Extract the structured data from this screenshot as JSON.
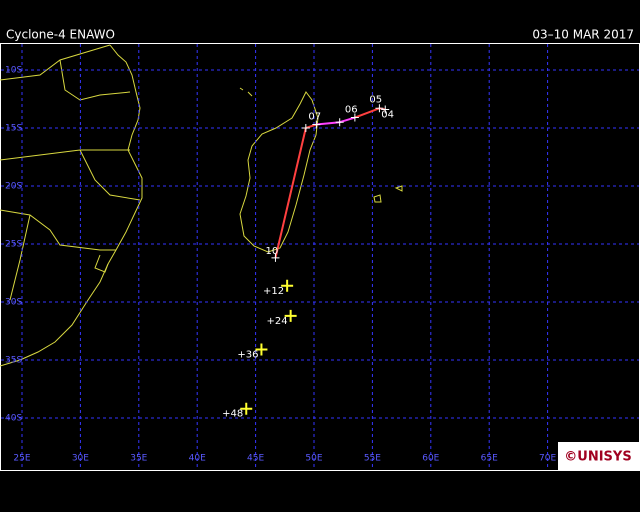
{
  "header": {
    "title": "Cyclone-4 ENAWO",
    "dates": "03–10 MAR 2017"
  },
  "grid": {
    "lats": [
      {
        "value": -10,
        "label": "10S"
      },
      {
        "value": -15,
        "label": "15S"
      },
      {
        "value": -20,
        "label": "20S"
      },
      {
        "value": -25,
        "label": "25S"
      },
      {
        "value": -30,
        "label": "30S"
      },
      {
        "value": -35,
        "label": "35S"
      },
      {
        "value": -40,
        "label": "40S"
      }
    ],
    "lons": [
      {
        "value": 25,
        "label": "25E"
      },
      {
        "value": 30,
        "label": "30E"
      },
      {
        "value": 35,
        "label": "35E"
      },
      {
        "value": 40,
        "label": "40E"
      },
      {
        "value": 45,
        "label": "45E"
      },
      {
        "value": 50,
        "label": "50E"
      },
      {
        "value": 55,
        "label": "55E"
      },
      {
        "value": 60,
        "label": "60E"
      },
      {
        "value": 65,
        "label": "65E"
      },
      {
        "value": 70,
        "label": "70E"
      }
    ]
  },
  "track": [
    {
      "lon": 56.1,
      "lat": -13.4,
      "label": "04",
      "color": "#ff4040"
    },
    {
      "lon": 55.6,
      "lat": -13.3,
      "label": "05",
      "color": "#ff4040"
    },
    {
      "lon": 53.5,
      "lat": -14.1,
      "label": "06",
      "color": "#ff4040"
    },
    {
      "lon": 52.2,
      "lat": -14.5,
      "color": "#ff40ff"
    },
    {
      "lon": 50.2,
      "lat": -14.7,
      "label": "07",
      "color": "#ff40ff"
    },
    {
      "lon": 49.3,
      "lat": -15.0,
      "color": "#ff4040"
    },
    {
      "lon": 46.7,
      "lat": -26.2,
      "label": "10",
      "color": "#ff4040"
    }
  ],
  "forecast": [
    {
      "lon": 47.7,
      "lat": -28.6,
      "label": "+12"
    },
    {
      "lon": 48.0,
      "lat": -31.2,
      "label": "+24"
    },
    {
      "lon": 45.5,
      "lat": -34.1,
      "label": "+36"
    },
    {
      "lon": 44.2,
      "lat": -39.2,
      "label": "+48"
    }
  ],
  "logo": "©UNISYS"
}
